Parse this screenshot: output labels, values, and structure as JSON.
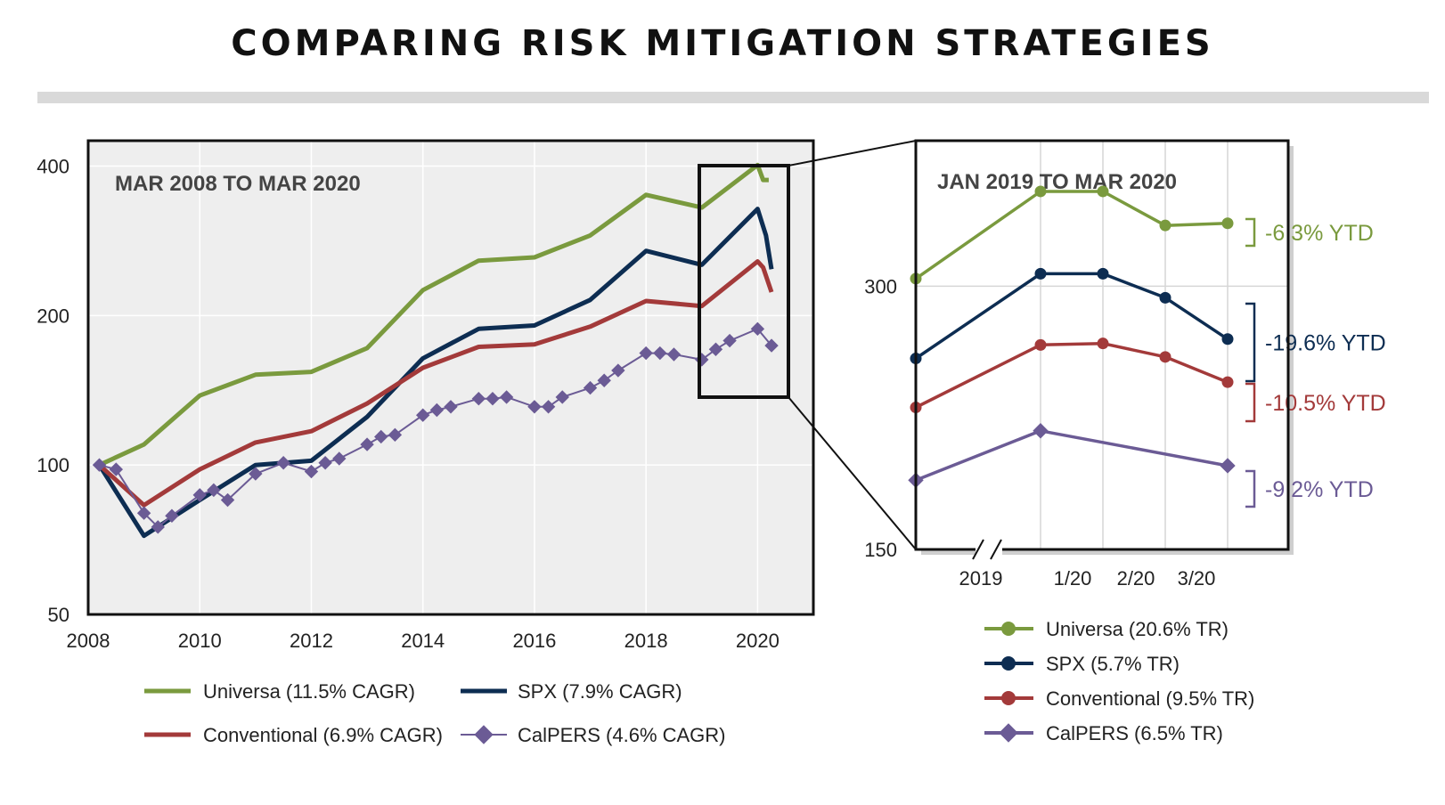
{
  "title": "COMPARING RISK MITIGATION STRATEGIES",
  "chart_data": [
    {
      "type": "line",
      "title": "MAR 2008 TO MAR 2020",
      "xlabel": "",
      "ylabel": "",
      "xlim": [
        2008,
        2021
      ],
      "ylim": [
        50,
        450
      ],
      "y_scale": "log",
      "x_ticks": [
        "2008",
        "2010",
        "2012",
        "2014",
        "2016",
        "2018",
        "2020"
      ],
      "y_ticks": [
        "50",
        "100",
        "200",
        "400"
      ],
      "grid": true,
      "legend_position": "bottom",
      "series": [
        {
          "name": "Universa (11.5% CAGR)",
          "color": "#7a9a3e",
          "marker": "none",
          "x": [
            2008.2,
            2009.0,
            2010.0,
            2011.0,
            2012.0,
            2013.0,
            2014.0,
            2015.0,
            2016.0,
            2017.0,
            2018.0,
            2019.0,
            2020.0,
            2020.1,
            2020.2
          ],
          "y": [
            100,
            110,
            138,
            152,
            154,
            172,
            225,
            258,
            262,
            290,
            350,
            330,
            402,
            375,
            375
          ]
        },
        {
          "name": "SPX (7.9% CAGR)",
          "color": "#0d2d52",
          "marker": "none",
          "x": [
            2008.2,
            2009.0,
            2010.0,
            2011.0,
            2012.0,
            2013.0,
            2014.0,
            2015.0,
            2016.0,
            2017.0,
            2018.0,
            2019.0,
            2020.0,
            2020.15,
            2020.25
          ],
          "y": [
            100,
            72,
            85,
            100,
            102,
            125,
            164,
            188,
            191,
            215,
            270,
            253,
            328,
            290,
            248
          ]
        },
        {
          "name": "Conventional (6.9% CAGR)",
          "color": "#a33a3a",
          "marker": "none",
          "x": [
            2008.2,
            2009.0,
            2010.0,
            2011.0,
            2012.0,
            2013.0,
            2014.0,
            2015.0,
            2016.0,
            2017.0,
            2018.0,
            2019.0,
            2020.0,
            2020.1,
            2020.25
          ],
          "y": [
            100,
            83,
            98,
            111,
            117,
            133,
            157,
            173,
            175,
            190,
            214,
            209,
            257,
            250,
            223
          ]
        },
        {
          "name": "CalPERS (4.6% CAGR)",
          "color": "#6b5b95",
          "marker": "diamond",
          "x": [
            2008.2,
            2008.5,
            2009.0,
            2009.25,
            2009.5,
            2010.0,
            2010.25,
            2010.5,
            2011.0,
            2011.5,
            2012.0,
            2012.25,
            2012.5,
            2013.0,
            2013.25,
            2013.5,
            2014.0,
            2014.25,
            2014.5,
            2015.0,
            2015.25,
            2015.5,
            2016.0,
            2016.25,
            2016.5,
            2017.0,
            2017.25,
            2017.5,
            2018.0,
            2018.25,
            2018.5,
            2019.0,
            2019.25,
            2019.5,
            2020.0,
            2020.25
          ],
          "y": [
            100,
            98,
            80,
            75,
            79,
            87,
            89,
            85,
            96,
            101,
            97,
            101,
            103,
            110,
            114,
            115,
            126,
            129,
            131,
            136,
            136,
            137,
            131,
            131,
            137,
            143,
            148,
            155,
            168,
            168,
            167,
            163,
            171,
            178,
            188,
            174
          ]
        }
      ],
      "highlight_box": "Jan 2019 to Mar 2020"
    },
    {
      "type": "line",
      "title": "JAN 2019 TO MAR 2020",
      "xlabel": "",
      "ylabel": "",
      "xlim": [
        0,
        6
      ],
      "ylim": [
        150,
        440
      ],
      "y_scale": "log",
      "x_ticks": [
        "2019",
        "1/20",
        "2/20",
        "3/20"
      ],
      "y_ticks": [
        "150",
        "300"
      ],
      "axis_break": true,
      "grid": true,
      "legend_position": "bottom",
      "series": [
        {
          "name": "Universa (20.6% TR)",
          "color": "#7a9a3e",
          "marker": "circle",
          "x": [
            0,
            2,
            3,
            4,
            5
          ],
          "y": [
            306,
            385,
            385,
            352,
            354
          ],
          "annotation": "-6.3% YTD"
        },
        {
          "name": "SPX (5.7% TR)",
          "color": "#0d2d52",
          "marker": "circle",
          "x": [
            0,
            2,
            3,
            4,
            5
          ],
          "y": [
            248,
            310,
            310,
            291,
            261
          ],
          "annotation": "-19.6% YTD"
        },
        {
          "name": "Conventional (9.5% TR)",
          "color": "#a33a3a",
          "marker": "circle",
          "x": [
            0,
            2,
            3,
            4,
            5
          ],
          "y": [
            218,
            257,
            258,
            249,
            233
          ],
          "annotation": "-10.5% YTD"
        },
        {
          "name": "CalPERS (6.5% TR)",
          "color": "#6b5b95",
          "marker": "diamond",
          "x": [
            0,
            2,
            5
          ],
          "y": [
            180,
            205,
            187
          ],
          "annotation": "-9.2% YTD"
        }
      ]
    }
  ]
}
